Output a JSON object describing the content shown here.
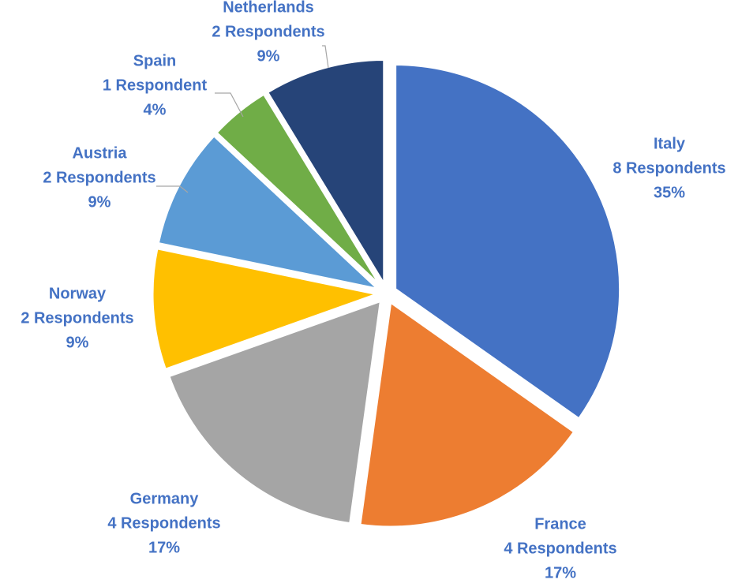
{
  "chart_data": {
    "type": "pie",
    "title": "",
    "start_angle_deg": 0,
    "direction": "clockwise",
    "label_color": "#4472c4",
    "slices": [
      {
        "name": "Italy",
        "count_label": "8 Respondents",
        "value": 8,
        "percent_label": "35%",
        "color": "#4472c4"
      },
      {
        "name": "France",
        "count_label": "4 Respondents",
        "value": 4,
        "percent_label": "17%",
        "color": "#ed7d31"
      },
      {
        "name": "Germany",
        "count_label": "4 Respondents",
        "value": 4,
        "percent_label": "17%",
        "color": "#a5a5a5"
      },
      {
        "name": "Norway",
        "count_label": "2 Respondents",
        "value": 2,
        "percent_label": "9%",
        "color": "#ffc000"
      },
      {
        "name": "Austria",
        "count_label": "2 Respondents",
        "value": 2,
        "percent_label": "9%",
        "color": "#5b9bd5"
      },
      {
        "name": "Spain",
        "count_label": "1 Respondent",
        "value": 1,
        "percent_label": "4%",
        "color": "#70ad47"
      },
      {
        "name": "Netherlands",
        "count_label": "2 Respondents",
        "value": 2,
        "percent_label": "9%",
        "color": "#264478"
      }
    ]
  }
}
